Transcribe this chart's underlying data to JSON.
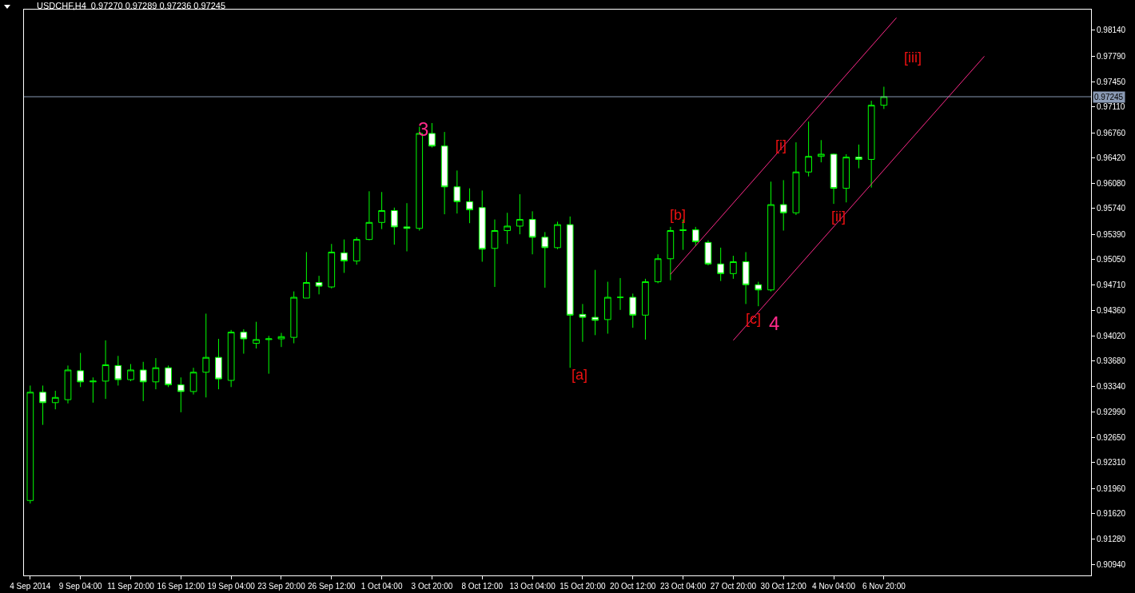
{
  "chart_data": {
    "type": "candlestick",
    "title": "USDCHF,H4  0.97270 0.97289 0.97236 0.97245",
    "color": "#00ff00",
    "categories": [
      "4 Sep 2014",
      null,
      null,
      null,
      "9 Sep 04:00",
      null,
      null,
      null,
      "11 Sep 20:00",
      null,
      null,
      null,
      "16 Sep 12:00",
      null,
      null,
      null,
      "19 Sep 04:00",
      null,
      null,
      null,
      "23 Sep 20:00",
      null,
      null,
      null,
      "26 Sep 12:00",
      null,
      null,
      null,
      "1 Oct 04:00",
      null,
      null,
      null,
      "3 Oct 20:00",
      null,
      null,
      null,
      "8 Oct 12:00",
      null,
      null,
      null,
      "13 Oct 04:00",
      null,
      null,
      null,
      "15 Oct 20:00",
      null,
      null,
      null,
      "20 Oct 12:00",
      null,
      null,
      null,
      "23 Oct 04:00",
      null,
      null,
      null,
      "27 Oct 20:00",
      null,
      null,
      null,
      "30 Oct 12:00",
      null,
      null,
      null,
      "4 Nov 04:00",
      null,
      null,
      null,
      "6 Nov 20:00",
      null,
      null,
      null,
      null,
      null,
      null,
      null,
      null,
      null,
      null,
      null,
      null,
      null,
      null,
      null,
      null
    ],
    "ohlc": [
      [
        0.918,
        0.9335,
        0.9176,
        0.9326
      ],
      [
        0.9326,
        0.9335,
        0.9282,
        0.9312
      ],
      [
        0.9312,
        0.9328,
        0.9303,
        0.9319
      ],
      [
        0.9316,
        0.9362,
        0.9311,
        0.9356
      ],
      [
        0.9355,
        0.9379,
        0.9333,
        0.934
      ],
      [
        0.934,
        0.9346,
        0.9312,
        0.9341
      ],
      [
        0.9341,
        0.9396,
        0.9317,
        0.9363
      ],
      [
        0.9362,
        0.9375,
        0.9335,
        0.9343
      ],
      [
        0.9343,
        0.9364,
        0.9341,
        0.9356
      ],
      [
        0.9356,
        0.9367,
        0.9314,
        0.934
      ],
      [
        0.934,
        0.9372,
        0.933,
        0.9359
      ],
      [
        0.9359,
        0.9362,
        0.9333,
        0.9336
      ],
      [
        0.9336,
        0.9346,
        0.9299,
        0.9327
      ],
      [
        0.9327,
        0.9359,
        0.9323,
        0.9353
      ],
      [
        0.9353,
        0.9432,
        0.9319,
        0.9373
      ],
      [
        0.9373,
        0.9398,
        0.933,
        0.9344
      ],
      [
        0.9342,
        0.941,
        0.9333,
        0.9407
      ],
      [
        0.9407,
        0.9411,
        0.9378,
        0.9398
      ],
      [
        0.9392,
        0.9421,
        0.9385,
        0.9397
      ],
      [
        0.9397,
        0.9402,
        0.9351,
        0.9398
      ],
      [
        0.9398,
        0.9406,
        0.9387,
        0.9401
      ],
      [
        0.94,
        0.9462,
        0.9392,
        0.9454
      ],
      [
        0.9453,
        0.9515,
        0.9453,
        0.9474
      ],
      [
        0.9474,
        0.9483,
        0.9458,
        0.9469
      ],
      [
        0.9468,
        0.9526,
        0.9466,
        0.9515
      ],
      [
        0.9514,
        0.9532,
        0.9487,
        0.9503
      ],
      [
        0.9503,
        0.9535,
        0.9498,
        0.9532
      ],
      [
        0.9532,
        0.9597,
        0.9531,
        0.9555
      ],
      [
        0.9555,
        0.9596,
        0.9546,
        0.9571
      ],
      [
        0.9571,
        0.9575,
        0.9525,
        0.9549
      ],
      [
        0.9549,
        0.9581,
        0.9516,
        0.9547
      ],
      [
        0.9547,
        0.9684,
        0.9544,
        0.9675
      ],
      [
        0.9675,
        0.9689,
        0.9656,
        0.9658
      ],
      [
        0.9658,
        0.9677,
        0.9566,
        0.9603
      ],
      [
        0.9603,
        0.9625,
        0.9567,
        0.9583
      ],
      [
        0.9583,
        0.9601,
        0.9554,
        0.9572
      ],
      [
        0.9575,
        0.9598,
        0.9502,
        0.9519
      ],
      [
        0.952,
        0.9559,
        0.9468,
        0.9544
      ],
      [
        0.9544,
        0.9568,
        0.9526,
        0.955
      ],
      [
        0.955,
        0.9593,
        0.9539,
        0.9559
      ],
      [
        0.9559,
        0.957,
        0.9512,
        0.9535
      ],
      [
        0.9535,
        0.9542,
        0.9467,
        0.9521
      ],
      [
        0.9521,
        0.9556,
        0.9519,
        0.9552
      ],
      [
        0.9552,
        0.9563,
        0.9359,
        0.943
      ],
      [
        0.9431,
        0.9445,
        0.9394,
        0.9427
      ],
      [
        0.9427,
        0.9491,
        0.9403,
        0.9423
      ],
      [
        0.9424,
        0.9475,
        0.9405,
        0.9454
      ],
      [
        0.9454,
        0.948,
        0.9437,
        0.9454
      ],
      [
        0.9454,
        0.9459,
        0.9413,
        0.943
      ],
      [
        0.943,
        0.9479,
        0.9397,
        0.9475
      ],
      [
        0.9475,
        0.9512,
        0.9473,
        0.9506
      ],
      [
        0.9506,
        0.9549,
        0.9477,
        0.9544
      ],
      [
        0.9544,
        0.9559,
        0.9518,
        0.9545
      ],
      [
        0.9545,
        0.9549,
        0.9523,
        0.9529
      ],
      [
        0.9528,
        0.9531,
        0.9497,
        0.9499
      ],
      [
        0.9499,
        0.9521,
        0.9476,
        0.9486
      ],
      [
        0.9486,
        0.951,
        0.9479,
        0.9502
      ],
      [
        0.9502,
        0.9515,
        0.9445,
        0.9471
      ],
      [
        0.9471,
        0.9475,
        0.9442,
        0.9464
      ],
      [
        0.9464,
        0.961,
        0.9462,
        0.9579
      ],
      [
        0.9579,
        0.9612,
        0.9544,
        0.9568
      ],
      [
        0.9568,
        0.9663,
        0.9565,
        0.9623
      ],
      [
        0.9623,
        0.9691,
        0.9617,
        0.9644
      ],
      [
        0.9644,
        0.9666,
        0.9636,
        0.9647
      ],
      [
        0.9647,
        0.9648,
        0.958,
        0.9601
      ],
      [
        0.9601,
        0.9647,
        0.9582,
        0.9643
      ],
      [
        0.9643,
        0.966,
        0.9628,
        0.964
      ],
      [
        0.964,
        0.9719,
        0.9602,
        0.9713
      ],
      [
        0.9713,
        0.9738,
        0.9708,
        0.97245
      ],
      null,
      null,
      null,
      null,
      null,
      null,
      null,
      null,
      null,
      null,
      null,
      null,
      null,
      null,
      null,
      null
    ],
    "series": [
      {
        "type": "line",
        "color": "#ff2a8a",
        "values": [
          null,
          null,
          null,
          null,
          null,
          null,
          null,
          null,
          null,
          null,
          null,
          null,
          null,
          null,
          null,
          null,
          null,
          null,
          null,
          null,
          null,
          null,
          null,
          null,
          null,
          null,
          null,
          null,
          null,
          null,
          null,
          null,
          null,
          null,
          null,
          null,
          null,
          null,
          null,
          null,
          null,
          null,
          null,
          null,
          null,
          null,
          null,
          null,
          null,
          null,
          null,
          0.9485,
          null,
          null,
          null,
          null,
          null,
          null,
          null,
          null,
          null,
          null,
          null,
          null,
          null,
          null,
          null,
          null,
          null,
          0.9831,
          null,
          null,
          null,
          null,
          null,
          null,
          null,
          null,
          null,
          null,
          null,
          null,
          null,
          null,
          null
        ]
      },
      {
        "type": "line",
        "color": "#ff2a8a",
        "values": [
          null,
          null,
          null,
          null,
          null,
          null,
          null,
          null,
          null,
          null,
          null,
          null,
          null,
          null,
          null,
          null,
          null,
          null,
          null,
          null,
          null,
          null,
          null,
          null,
          null,
          null,
          null,
          null,
          null,
          null,
          null,
          null,
          null,
          null,
          null,
          null,
          null,
          null,
          null,
          null,
          null,
          null,
          null,
          null,
          null,
          null,
          null,
          null,
          null,
          null,
          null,
          null,
          null,
          null,
          null,
          null,
          0.9396,
          null,
          null,
          null,
          null,
          null,
          null,
          null,
          null,
          null,
          null,
          null,
          null,
          null,
          null,
          null,
          null,
          null,
          null,
          null,
          0.9779,
          null,
          null,
          null,
          null,
          null,
          null,
          null,
          null
        ]
      }
    ],
    "ylim": [
      0.9079,
      0.9842
    ],
    "yticks": [
      {
        "value": 0.9814,
        "label": "0.98140"
      },
      {
        "value": 0.9779,
        "label": "0.97790"
      },
      {
        "value": 0.9745,
        "label": "0.97450"
      },
      {
        "value": 0.9711,
        "label": "0.97110"
      },
      {
        "value": 0.9676,
        "label": "0.96760"
      },
      {
        "value": 0.9642,
        "label": "0.96420"
      },
      {
        "value": 0.9608,
        "label": "0.96080"
      },
      {
        "value": 0.9574,
        "label": "0.95740"
      },
      {
        "value": 0.9539,
        "label": "0.95390"
      },
      {
        "value": 0.9505,
        "label": "0.95050"
      },
      {
        "value": 0.9471,
        "label": "0.94710"
      },
      {
        "value": 0.9436,
        "label": "0.94360"
      },
      {
        "value": 0.9402,
        "label": "0.94020"
      },
      {
        "value": 0.9368,
        "label": "0.93680"
      },
      {
        "value": 0.9334,
        "label": "0.93340"
      },
      {
        "value": 0.9299,
        "label": "0.92990"
      },
      {
        "value": 0.9265,
        "label": "0.92650"
      },
      {
        "value": 0.9231,
        "label": "0.92310"
      },
      {
        "value": 0.9196,
        "label": "0.91960"
      },
      {
        "value": 0.9162,
        "label": "0.91620"
      },
      {
        "value": 0.9128,
        "label": "0.91280"
      },
      {
        "value": 0.9094,
        "label": "0.90940"
      }
    ],
    "ref_lines": [
      {
        "axis": "y",
        "value": 0.97245,
        "label": "0.97245",
        "color": "#8a9ab4"
      }
    ],
    "annotations": [
      "3",
      "[a]",
      "[b]",
      "[c]",
      "4",
      "[i]",
      "[ii]",
      "[iii]"
    ]
  }
}
